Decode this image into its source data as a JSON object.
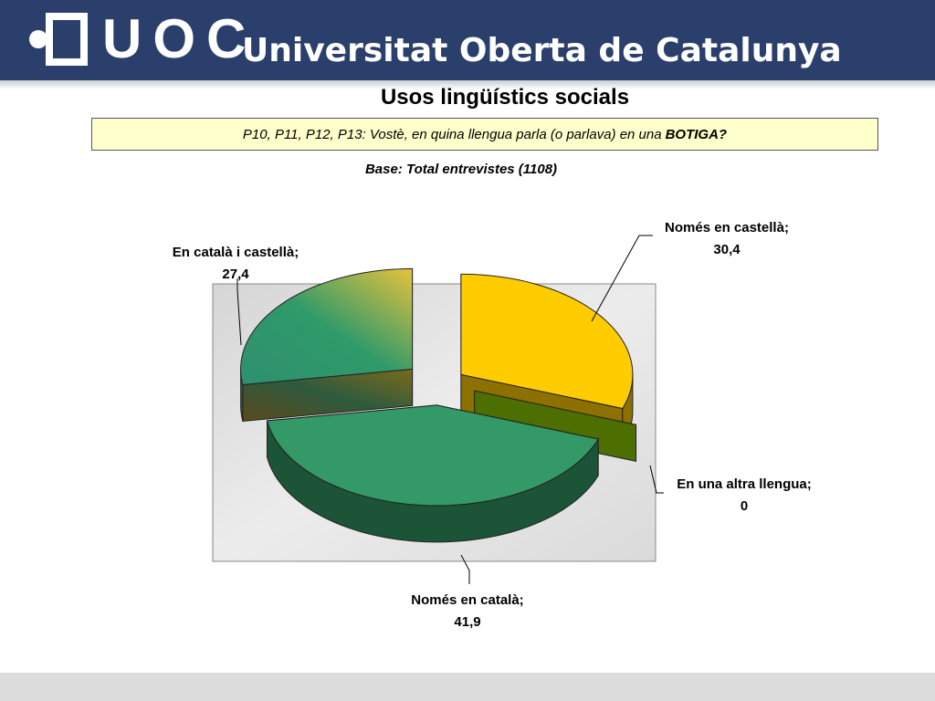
{
  "header": {
    "logo_text": "UOC",
    "university_name": "Universitat Oberta de Catalunya",
    "background_color": "#2b3f6c"
  },
  "slide": {
    "title": "Usos lingüístics socials",
    "question_prefix": "P10, P11, P12, P13: Vostè, en quina llengua parla (o parlava) en una",
    "question_bold": "BOTIGA?",
    "base_note": "Base: Total entrevistes (1108)"
  },
  "chart_data": {
    "type": "pie",
    "style": "3d-exploded",
    "unit": "%",
    "slices": [
      {
        "label": "Només en castellà",
        "value": 30.4,
        "value_text": "30,4",
        "color": "#ffcc00"
      },
      {
        "label": "En una altra llengua",
        "value": 0,
        "value_text": "0",
        "color": "#4d6e00"
      },
      {
        "label": "Només en català",
        "value": 41.9,
        "value_text": "41,9",
        "color": "#339966"
      },
      {
        "label": "En català i castellà",
        "value": 27.4,
        "value_text": "27,4",
        "color": "#99a84a"
      }
    ],
    "plot_background": "#e4e4e4",
    "legend": "none"
  }
}
